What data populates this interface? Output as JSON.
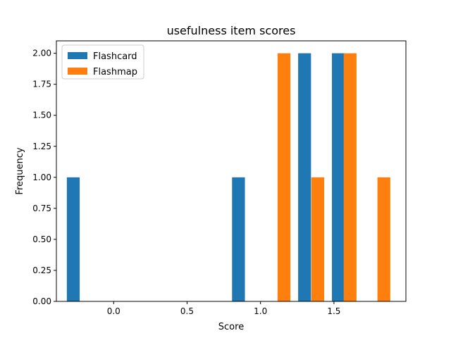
{
  "chart_data": {
    "type": "bar",
    "title": "usefulness item scores",
    "xlabel": "Score",
    "ylabel": "Frequency",
    "xlim": [
      -0.39,
      1.99
    ],
    "ylim": [
      0,
      2.1
    ],
    "xticks": [
      0.0,
      0.5,
      1.0,
      1.5
    ],
    "xtick_labels": [
      "0.0",
      "0.5",
      "1.0",
      "1.5"
    ],
    "yticks": [
      0.0,
      0.25,
      0.5,
      0.75,
      1.0,
      1.25,
      1.5,
      1.75,
      2.0
    ],
    "ytick_labels": [
      "0.00",
      "0.25",
      "0.50",
      "0.75",
      "1.00",
      "1.25",
      "1.50",
      "1.75",
      "2.00"
    ],
    "bar_width": 0.0875,
    "grid": false,
    "legend_position": "top-left",
    "series": [
      {
        "name": "Flashcard",
        "color": "#1f77b4",
        "x": [
          -0.275,
          0.85,
          1.3,
          1.53
        ],
        "values": [
          1,
          1,
          2,
          2
        ]
      },
      {
        "name": "Flashmap",
        "color": "#ff7f0e",
        "x": [
          1.16,
          1.39,
          1.61,
          1.84
        ],
        "values": [
          2,
          1,
          2,
          1
        ]
      }
    ]
  }
}
